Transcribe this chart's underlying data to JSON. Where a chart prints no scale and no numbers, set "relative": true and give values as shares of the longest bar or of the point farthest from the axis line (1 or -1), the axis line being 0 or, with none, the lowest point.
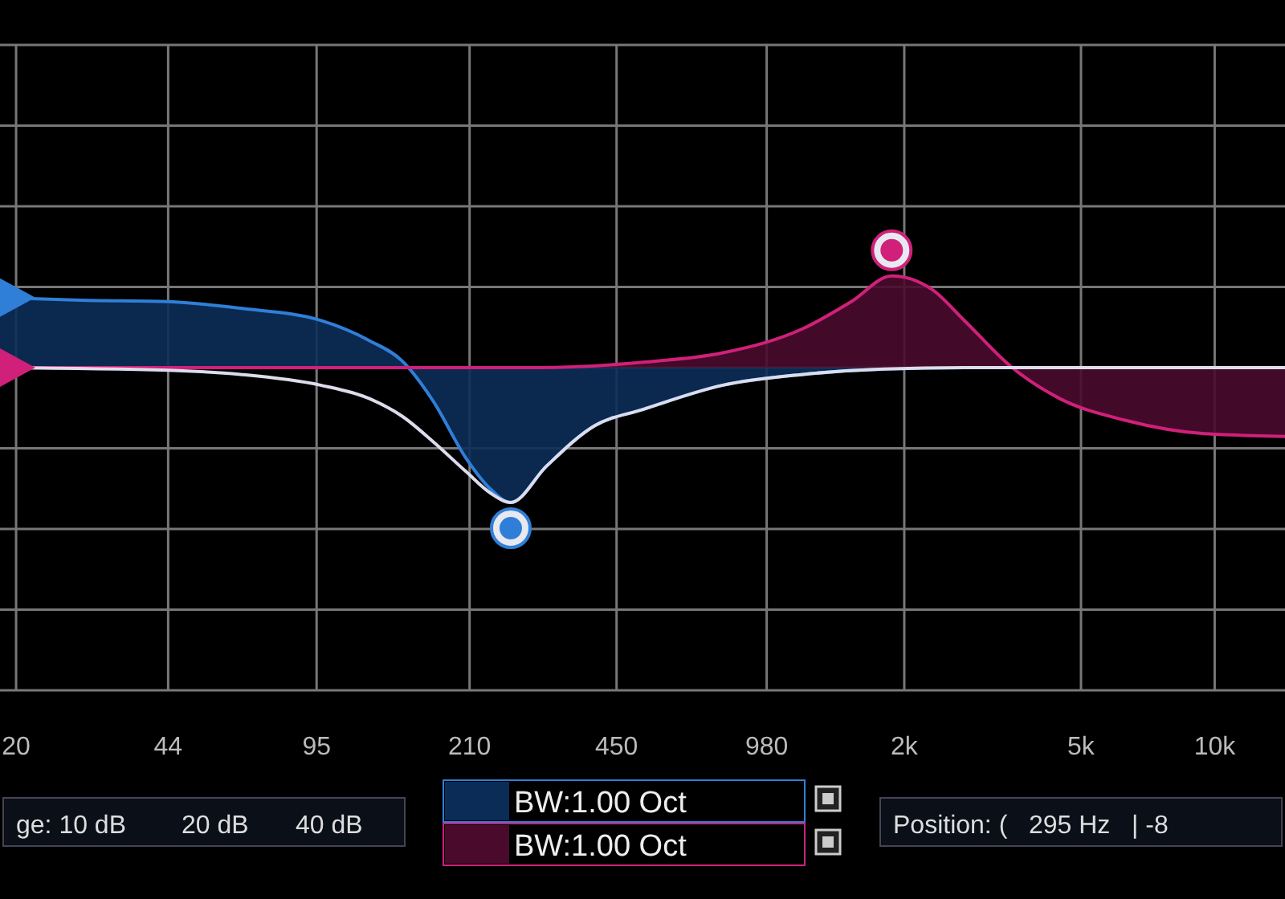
{
  "chart_data": {
    "type": "area",
    "relative": true,
    "log": "x",
    "grid": true,
    "legend": "bottom",
    "xlim": [
      18.4,
      14400
    ],
    "xticks": [
      20,
      44,
      95,
      210,
      450,
      980,
      {
        "value": 2000,
        "label": "2k"
      },
      {
        "value": 5000,
        "label": "5k"
      },
      {
        "value": 10000,
        "label": "10k"
      }
    ],
    "series": [
      {
        "name": "BW:1.00 Oct",
        "color": "#2f7fd8",
        "type": "area",
        "x": [
          18.4,
          27.9,
          44,
          64,
          97,
          125,
          148,
          174,
          206,
          234,
          260,
          313,
          402,
          516,
          781,
          1184,
          1800,
          2730,
          14400
        ],
        "values": [
          0.52,
          0.5,
          0.49,
          0.44,
          0.35,
          0.2,
          0.05,
          -0.25,
          -0.67,
          -0.9,
          -1,
          -0.73,
          -0.43,
          -0.31,
          -0.13,
          -0.05,
          -0.01,
          0,
          0
        ]
      },
      {
        "name": "BW:1.00 Oct",
        "color": "#d0207a",
        "type": "area",
        "x": [
          18.4,
          300,
          516,
          781,
          1184,
          1520,
          1874,
          2310,
          2730,
          3500,
          4480,
          6280,
          9480,
          14400
        ],
        "values": [
          0,
          0,
          0.04,
          0.11,
          0.29,
          0.49,
          0.68,
          0.58,
          0.35,
          0,
          -0.23,
          -0.39,
          -0.49,
          -0.51
        ]
      },
      {
        "color": "#dcdcec",
        "type": "line",
        "x": [
          18.4,
          44,
          64,
          97,
          125,
          148,
          174,
          206,
          234,
          260,
          313,
          402,
          516,
          781,
          1184,
          1800,
          2730,
          14400
        ],
        "values": [
          0,
          -0.02,
          -0.05,
          -0.13,
          -0.23,
          -0.36,
          -0.55,
          -0.77,
          -0.93,
          -1,
          -0.73,
          -0.43,
          -0.31,
          -0.13,
          -0.05,
          -0.01,
          0,
          0
        ]
      }
    ],
    "annotations": [
      "ge: 10 dB",
      "20 dB",
      "40 dB",
      "Position: (   295 Hz   | -8"
    ]
  }
}
